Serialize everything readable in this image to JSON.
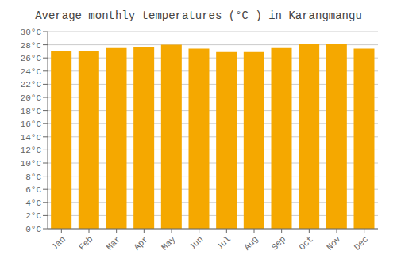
{
  "chart_data": {
    "type": "bar",
    "title": "Average monthly temperatures (°C ) in Karangmangu",
    "categories": [
      "Jan",
      "Feb",
      "Mar",
      "Apr",
      "May",
      "Jun",
      "Jul",
      "Aug",
      "Sep",
      "Oct",
      "Nov",
      "Dec"
    ],
    "values": [
      27.1,
      27.1,
      27.5,
      27.7,
      28.0,
      27.4,
      26.9,
      26.9,
      27.5,
      28.2,
      28.1,
      27.4
    ],
    "color": "#F5A800",
    "ylim": [
      0,
      30
    ],
    "yticks": [
      {
        "value": 0,
        "label": "0°C"
      },
      {
        "value": 2,
        "label": "2°C"
      },
      {
        "value": 4,
        "label": "4°C"
      },
      {
        "value": 6,
        "label": "6°C"
      },
      {
        "value": 8,
        "label": "8°C"
      },
      {
        "value": 10,
        "label": "10°C"
      },
      {
        "value": 12,
        "label": "12°C"
      },
      {
        "value": 14,
        "label": "14°C"
      },
      {
        "value": 16,
        "label": "16°C"
      },
      {
        "value": 18,
        "label": "18°C"
      },
      {
        "value": 20,
        "label": "20°C"
      },
      {
        "value": 22,
        "label": "22°C"
      },
      {
        "value": 24,
        "label": "24°C"
      },
      {
        "value": 26,
        "label": "26°C"
      },
      {
        "value": 28,
        "label": "28°C"
      },
      {
        "value": 30,
        "label": "30°C"
      }
    ],
    "grid": true
  }
}
